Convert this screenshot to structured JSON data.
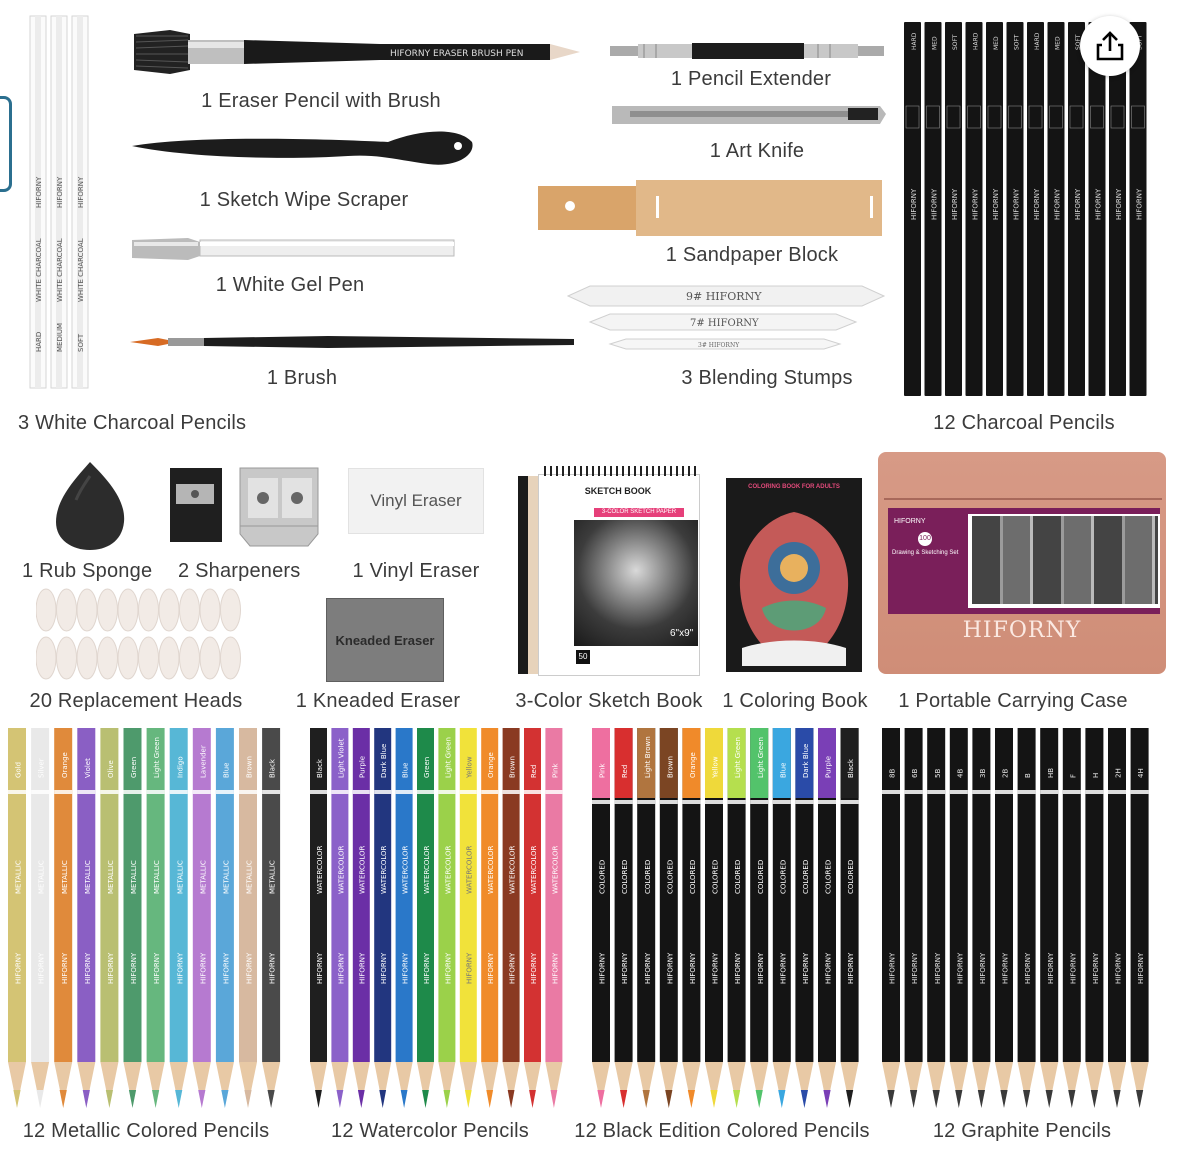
{
  "labels": {
    "white_charcoal": "3 White Charcoal Pencils",
    "eraser_pencil": "1 Eraser Pencil with Brush",
    "sketch_wipe": "1 Sketch Wipe Scraper",
    "white_gel": "1 White Gel Pen",
    "brush": "1 Brush",
    "pencil_extender": "1 Pencil Extender",
    "art_knife": "1 Art Knife",
    "sandpaper": "1 Sandpaper Block",
    "blending": "3 Blending Stumps",
    "charcoal": "12 Charcoal Pencils",
    "rub_sponge": "1 Rub Sponge",
    "sharpeners": "2 Sharpeners",
    "vinyl_eraser": "1 Vinyl Eraser",
    "replacement_heads": "20 Replacement Heads",
    "kneaded_eraser": "1 Kneaded Eraser",
    "sketch_book": "3-Color Sketch Book",
    "coloring_book": "1 Coloring Book",
    "carrying_case": "1 Portable Carrying Case",
    "metallic": "12 Metallic Colored Pencils",
    "watercolor": "12 Watercolor Pencils",
    "black_edition": "12 Black Edition Colored Pencils",
    "graphite": "12 Graphite Pencils"
  },
  "product_text": {
    "eraser_pen_print": "HIFORNY ERASER BRUSH PEN",
    "vinyl_eraser_text": "Vinyl Eraser",
    "kneaded_eraser_text": "Kneaded Eraser",
    "stump_9": "9# HIFORNY",
    "stump_7": "7# HIFORNY",
    "stump_3": "3# HIFORNY",
    "sketch_book_title": "SKETCH BOOK",
    "sketch_book_sub": "3-COLOR SKETCH PAPER",
    "sketch_book_size": "6\"x9\"",
    "sketch_book_sheets": "50",
    "coloring_book_title": "COLORING BOOK FOR ADULTS",
    "case_brand": "HIFORNY",
    "case_card_brand": "HIFORNY",
    "case_card_title": "Drawing & Sketching Set",
    "case_card_count": "100",
    "white_pencil_brand": "HIFORNY",
    "white_pencil_name": "WHITE CHARCOAL",
    "white_pencil_grades": [
      "HARD",
      "MEDIUM",
      "SOFT"
    ],
    "charcoal_brand": "HIFORNY",
    "charcoal_grades": [
      "HARD",
      "MED",
      "SOFT",
      "HARD",
      "MED",
      "SOFT",
      "HARD",
      "MED",
      "SOFT",
      "HARD",
      "MED",
      "SOFT"
    ],
    "metallic_brand": "HIFORNY",
    "metallic_type": "METALLIC",
    "metallic_names": [
      "Gold",
      "Silver",
      "Orange",
      "Violet",
      "Olive",
      "Green",
      "Light Green",
      "Indigo",
      "Lavender",
      "Blue",
      "Brown",
      "Black"
    ],
    "watercolor_brand": "HIFORNY",
    "watercolor_type": "WATERCOLOR",
    "watercolor_names": [
      "Black",
      "Light Violet",
      "Purple",
      "Dark Blue",
      "Blue",
      "Green",
      "Light Green",
      "Yellow",
      "Orange",
      "Brown",
      "Red",
      "Pink"
    ],
    "colored_brand": "HIFORNY",
    "colored_type": "COLORED",
    "colored_names": [
      "Pink",
      "Red",
      "Light Brown",
      "Brown",
      "Orange",
      "Yellow",
      "Light Green",
      "Light Green",
      "Blue",
      "Dark Blue",
      "Purple",
      "Black"
    ],
    "graphite_brand": "HIFORNY",
    "graphite_grades": [
      "8B",
      "6B",
      "5B",
      "4B",
      "3B",
      "2B",
      "B",
      "HB",
      "F",
      "H",
      "2H",
      "4H"
    ]
  },
  "colors": {
    "metallic": [
      "#d4c474",
      "#e9e9e9",
      "#e08a3b",
      "#8a5fc4",
      "#b9bf72",
      "#4e9a6c",
      "#66b77e",
      "#57b7d6",
      "#b67ad0",
      "#5aa7d9",
      "#d7b9a0",
      "#4a4a4a"
    ],
    "watercolor": [
      "#1f1f1f",
      "#8b61c9",
      "#6b2fa6",
      "#22367f",
      "#2a78c9",
      "#1e8a4a",
      "#9bd14a",
      "#f1e23a",
      "#f08b2a",
      "#8a3a22",
      "#d33232",
      "#ea7aa4"
    ],
    "colored_tip": [
      "#ee6fa0",
      "#d82f2f",
      "#b0753f",
      "#7b4523",
      "#f08a2a",
      "#efd93a",
      "#b5df4e",
      "#53c36b",
      "#3aa7e0",
      "#2a4ba8",
      "#7a3fb6",
      "#1f1f1f"
    ],
    "charcoal_body": "#141414",
    "case_color": "#d99a84",
    "share_icon": "#000000"
  },
  "share": {
    "icon": "share-icon"
  }
}
